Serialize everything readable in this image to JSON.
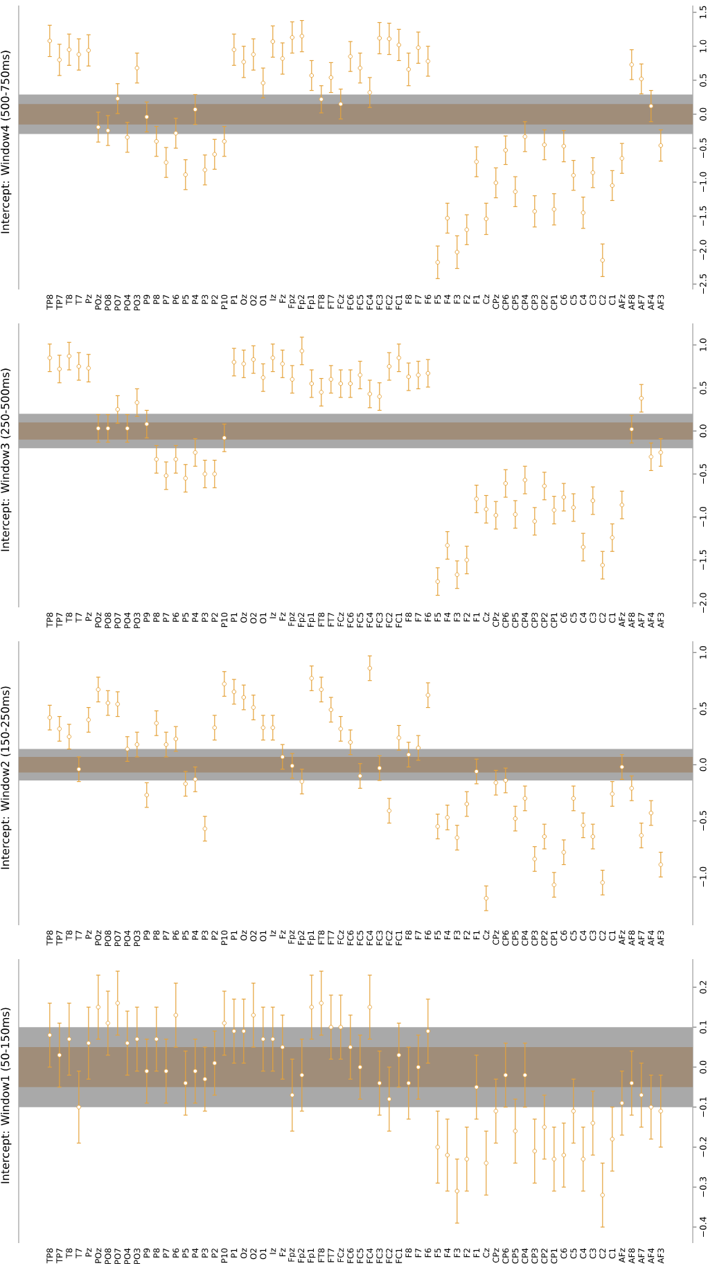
{
  "chart_data": [
    {
      "type": "scatter",
      "title": "Intercept: Window4 (500-750ms)",
      "color": "#e5a33b",
      "marker": "circle",
      "categories": [
        "TP8",
        "TP7",
        "T8",
        "T7",
        "Pz",
        "POz",
        "PO8",
        "PO7",
        "PO4",
        "PO3",
        "P9",
        "P8",
        "P7",
        "P6",
        "P5",
        "P4",
        "P3",
        "P2",
        "P10",
        "P1",
        "Oz",
        "O2",
        "O1",
        "Iz",
        "Fz",
        "Fpz",
        "Fp2",
        "Fp1",
        "FT8",
        "FT7",
        "FCz",
        "FC6",
        "FC5",
        "FC4",
        "FC3",
        "FC2",
        "FC1",
        "F8",
        "F7",
        "F6",
        "F5",
        "F4",
        "F3",
        "F2",
        "F1",
        "Cz",
        "CPz",
        "CP6",
        "CP5",
        "CP4",
        "CP3",
        "CP2",
        "CP1",
        "C6",
        "C5",
        "C4",
        "C3",
        "C2",
        "C1",
        "AFz",
        "AF8",
        "AF7",
        "AF4",
        "AF3"
      ],
      "values": [
        1.08,
        0.8,
        0.95,
        0.88,
        0.94,
        -0.19,
        -0.24,
        0.23,
        -0.34,
        0.68,
        -0.04,
        -0.4,
        -0.71,
        -0.28,
        -0.89,
        0.07,
        -0.82,
        -0.59,
        -0.4,
        0.95,
        0.77,
        0.88,
        0.46,
        1.07,
        0.82,
        1.13,
        1.15,
        0.57,
        0.22,
        0.54,
        0.15,
        0.85,
        0.68,
        0.32,
        1.12,
        1.11,
        1.02,
        0.66,
        0.98,
        0.78,
        -2.18,
        -1.53,
        -2.03,
        -1.7,
        -0.7,
        -1.54,
        -1.01,
        -0.53,
        -1.14,
        -0.33,
        -1.43,
        -0.45,
        -1.4,
        -0.47,
        -0.9,
        -1.45,
        -0.86,
        -2.15,
        -1.05,
        -0.65,
        0.73,
        0.52,
        0.12,
        -0.46
      ],
      "errors": [
        0.23,
        0.23,
        0.23,
        0.23,
        0.23,
        0.22,
        0.22,
        0.22,
        0.22,
        0.22,
        0.22,
        0.22,
        0.22,
        0.22,
        0.22,
        0.22,
        0.22,
        0.22,
        0.22,
        0.23,
        0.23,
        0.23,
        0.22,
        0.23,
        0.23,
        0.23,
        0.23,
        0.22,
        0.2,
        0.22,
        0.22,
        0.22,
        0.22,
        0.22,
        0.23,
        0.23,
        0.23,
        0.24,
        0.23,
        0.22,
        0.24,
        0.22,
        0.24,
        0.22,
        0.22,
        0.23,
        0.22,
        0.21,
        0.22,
        0.22,
        0.23,
        0.22,
        0.23,
        0.23,
        0.22,
        0.23,
        0.22,
        0.24,
        0.22,
        0.22,
        0.22,
        0.22,
        0.23,
        0.23
      ],
      "ylim": [
        -2.58,
        1.6
      ],
      "yticks": [
        {
          "value": -2.5,
          "label": "−2.5"
        },
        {
          "value": -2.0,
          "label": "−2.0"
        },
        {
          "value": -1.5,
          "label": "−1.5"
        },
        {
          "value": -1.0,
          "label": "−1.0"
        },
        {
          "value": -0.5,
          "label": "−0.5"
        },
        {
          "value": 0.0,
          "label": "0.0"
        },
        {
          "value": 0.5,
          "label": "0.5"
        },
        {
          "value": 1.0,
          "label": "1.0"
        },
        {
          "value": 1.5,
          "label": "1.5"
        }
      ],
      "bands": [
        {
          "axis": "y",
          "from": -0.29,
          "to": 0.29,
          "color": "#a9a9a9"
        },
        {
          "axis": "y",
          "from": -0.15,
          "to": 0.15,
          "color": "#a08d79"
        }
      ]
    },
    {
      "type": "scatter",
      "title": "Intercept: Window3 (250-500ms)",
      "color": "#e5a33b",
      "marker": "circle",
      "categories": [
        "TP8",
        "TP7",
        "T8",
        "T7",
        "Pz",
        "POz",
        "PO8",
        "PO7",
        "PO4",
        "PO3",
        "P9",
        "P8",
        "P7",
        "P6",
        "P5",
        "P4",
        "P3",
        "P2",
        "P10",
        "P1",
        "Oz",
        "O2",
        "O1",
        "Iz",
        "Fz",
        "Fpz",
        "Fp2",
        "Fp1",
        "FT8",
        "FT7",
        "FCz",
        "FC6",
        "FC5",
        "FC4",
        "FC3",
        "FC2",
        "FC1",
        "F8",
        "F7",
        "F6",
        "F5",
        "F4",
        "F3",
        "F2",
        "F1",
        "Cz",
        "CPz",
        "CP6",
        "CP5",
        "CP4",
        "CP3",
        "CP2",
        "CP1",
        "C6",
        "C5",
        "C4",
        "C3",
        "C2",
        "C1",
        "AFz",
        "AF8",
        "AF7",
        "AF4",
        "AF3"
      ],
      "values": [
        0.85,
        0.72,
        0.87,
        0.75,
        0.73,
        0.03,
        0.03,
        0.25,
        0.03,
        0.33,
        0.08,
        -0.33,
        -0.52,
        -0.33,
        -0.55,
        -0.25,
        -0.5,
        -0.5,
        -0.08,
        0.8,
        0.78,
        0.83,
        0.62,
        0.85,
        0.78,
        0.6,
        0.93,
        0.55,
        0.45,
        0.6,
        0.55,
        0.55,
        0.65,
        0.43,
        0.4,
        0.75,
        0.85,
        0.63,
        0.65,
        0.67,
        -1.75,
        -1.33,
        -1.67,
        -1.5,
        -0.79,
        -0.91,
        -0.98,
        -0.61,
        -0.97,
        -0.57,
        -1.05,
        -0.64,
        -0.92,
        -0.77,
        -0.89,
        -1.35,
        -0.81,
        -1.56,
        -1.24,
        -0.86,
        0.02,
        0.38,
        -0.3,
        -0.25
      ],
      "errors": [
        0.16,
        0.16,
        0.16,
        0.16,
        0.16,
        0.16,
        0.16,
        0.16,
        0.16,
        0.16,
        0.16,
        0.16,
        0.16,
        0.16,
        0.16,
        0.16,
        0.16,
        0.16,
        0.16,
        0.16,
        0.16,
        0.16,
        0.16,
        0.16,
        0.16,
        0.16,
        0.16,
        0.16,
        0.16,
        0.16,
        0.16,
        0.16,
        0.16,
        0.16,
        0.16,
        0.16,
        0.16,
        0.16,
        0.16,
        0.16,
        0.16,
        0.16,
        0.16,
        0.16,
        0.16,
        0.16,
        0.16,
        0.16,
        0.16,
        0.16,
        0.16,
        0.16,
        0.16,
        0.16,
        0.16,
        0.16,
        0.16,
        0.16,
        0.16,
        0.16,
        0.16,
        0.16,
        0.16,
        0.16
      ],
      "ylim": [
        -2.05,
        1.25
      ],
      "yticks": [
        {
          "value": -2.0,
          "label": "−2.0"
        },
        {
          "value": -1.5,
          "label": "−1.5"
        },
        {
          "value": -1.0,
          "label": "−1.0"
        },
        {
          "value": -0.5,
          "label": "−0.5"
        },
        {
          "value": 0.0,
          "label": "0.0"
        },
        {
          "value": 0.5,
          "label": "0.5"
        },
        {
          "value": 1.0,
          "label": "1.0"
        }
      ],
      "bands": [
        {
          "axis": "y",
          "from": -0.2,
          "to": 0.2,
          "color": "#a9a9a9"
        },
        {
          "axis": "y",
          "from": -0.1,
          "to": 0.1,
          "color": "#a08d79"
        }
      ]
    },
    {
      "type": "scatter",
      "title": "Intercept: Window2 (150-250ms)",
      "color": "#e5a33b",
      "marker": "circle",
      "categories": [
        "TP8",
        "TP7",
        "T8",
        "T7",
        "Pz",
        "POz",
        "PO8",
        "PO7",
        "PO4",
        "PO3",
        "P9",
        "P8",
        "P7",
        "P6",
        "P5",
        "P4",
        "P3",
        "P2",
        "P10",
        "P1",
        "Oz",
        "O2",
        "O1",
        "Iz",
        "Fz",
        "Fpz",
        "Fp2",
        "Fp1",
        "FT8",
        "FT7",
        "FCz",
        "FC6",
        "FC5",
        "FC4",
        "FC3",
        "FC2",
        "FC1",
        "F8",
        "F7",
        "F6",
        "F5",
        "F4",
        "F3",
        "F2",
        "F1",
        "Cz",
        "CPz",
        "CP6",
        "CP5",
        "CP4",
        "CP3",
        "CP2",
        "CP1",
        "C6",
        "C5",
        "C4",
        "C3",
        "C2",
        "C1",
        "AFz",
        "AF8",
        "AF7",
        "AF4",
        "AF3"
      ],
      "values": [
        0.42,
        0.32,
        0.25,
        -0.04,
        0.4,
        0.67,
        0.55,
        0.54,
        0.14,
        0.18,
        -0.27,
        0.37,
        0.18,
        0.23,
        -0.17,
        -0.13,
        -0.57,
        0.33,
        0.72,
        0.65,
        0.6,
        0.51,
        0.33,
        0.33,
        0.07,
        -0.01,
        -0.15,
        0.77,
        0.67,
        0.49,
        0.32,
        0.2,
        -0.1,
        0.86,
        -0.03,
        -0.41,
        0.24,
        0.09,
        0.15,
        0.62,
        -0.55,
        -0.47,
        -0.65,
        -0.35,
        -0.06,
        -1.19,
        -0.16,
        -0.14,
        -0.48,
        -0.3,
        -0.84,
        -0.64,
        -1.07,
        -0.78,
        -0.3,
        -0.54,
        -0.64,
        -1.05,
        -0.26,
        -0.02,
        -0.21,
        -0.63,
        -0.43,
        -0.89
      ],
      "errors": [
        0.11,
        0.11,
        0.11,
        0.11,
        0.11,
        0.11,
        0.11,
        0.11,
        0.11,
        0.11,
        0.11,
        0.11,
        0.11,
        0.11,
        0.11,
        0.11,
        0.11,
        0.11,
        0.11,
        0.11,
        0.11,
        0.11,
        0.11,
        0.11,
        0.11,
        0.11,
        0.11,
        0.11,
        0.11,
        0.11,
        0.11,
        0.11,
        0.11,
        0.11,
        0.11,
        0.11,
        0.11,
        0.11,
        0.11,
        0.11,
        0.11,
        0.11,
        0.11,
        0.11,
        0.11,
        0.11,
        0.11,
        0.11,
        0.11,
        0.11,
        0.11,
        0.11,
        0.11,
        0.11,
        0.11,
        0.11,
        0.11,
        0.11,
        0.11,
        0.11,
        0.11,
        0.11,
        0.11,
        0.11
      ],
      "ylim": [
        -1.43,
        1.1
      ],
      "yticks": [
        {
          "value": -1.0,
          "label": "−1.0"
        },
        {
          "value": -0.5,
          "label": "−0.5"
        },
        {
          "value": 0.0,
          "label": "0.0"
        },
        {
          "value": 0.5,
          "label": "0.5"
        },
        {
          "value": 1.0,
          "label": "1.0"
        }
      ],
      "bands": [
        {
          "axis": "y",
          "from": -0.14,
          "to": 0.14,
          "color": "#a9a9a9"
        },
        {
          "axis": "y",
          "from": -0.07,
          "to": 0.07,
          "color": "#a08d79"
        }
      ]
    },
    {
      "type": "scatter",
      "title": "Intercept: Window1 (50-150ms)",
      "color": "#e5a33b",
      "marker": "circle",
      "categories": [
        "TP8",
        "TP7",
        "T8",
        "T7",
        "Pz",
        "POz",
        "PO8",
        "PO7",
        "PO4",
        "PO3",
        "P9",
        "P8",
        "P7",
        "P6",
        "P5",
        "P4",
        "P3",
        "P2",
        "P10",
        "P1",
        "Oz",
        "O2",
        "O1",
        "Iz",
        "Fz",
        "Fpz",
        "Fp2",
        "Fp1",
        "FT8",
        "FT7",
        "FCz",
        "FC6",
        "FC5",
        "FC4",
        "FC3",
        "FC2",
        "FC1",
        "F8",
        "F7",
        "F6",
        "F5",
        "F4",
        "F3",
        "F2",
        "F1",
        "Cz",
        "CPz",
        "CP6",
        "CP5",
        "CP4",
        "CP3",
        "CP2",
        "CP1",
        "C6",
        "C5",
        "C4",
        "C3",
        "C2",
        "C1",
        "AFz",
        "AF8",
        "AF7",
        "AF4",
        "AF3"
      ],
      "values": [
        0.08,
        0.03,
        0.07,
        -0.1,
        0.06,
        0.15,
        0.11,
        0.16,
        0.06,
        0.07,
        -0.01,
        0.07,
        -0.01,
        0.13,
        -0.04,
        -0.01,
        -0.03,
        0.01,
        0.11,
        0.09,
        0.09,
        0.13,
        0.07,
        0.07,
        0.05,
        -0.07,
        -0.02,
        0.15,
        0.16,
        0.1,
        0.1,
        0.05,
        0.0,
        0.15,
        -0.04,
        -0.08,
        0.03,
        -0.04,
        0.0,
        0.09,
        -0.2,
        -0.22,
        -0.31,
        -0.23,
        -0.05,
        -0.24,
        -0.11,
        -0.02,
        -0.16,
        -0.02,
        -0.21,
        -0.15,
        -0.23,
        -0.22,
        -0.11,
        -0.23,
        -0.14,
        -0.32,
        -0.18,
        -0.09,
        -0.04,
        -0.07,
        -0.1,
        -0.11
      ],
      "errors": [
        0.08,
        0.08,
        0.09,
        0.09,
        0.09,
        0.08,
        0.08,
        0.08,
        0.08,
        0.08,
        0.08,
        0.08,
        0.08,
        0.08,
        0.08,
        0.08,
        0.08,
        0.08,
        0.08,
        0.08,
        0.08,
        0.08,
        0.08,
        0.08,
        0.08,
        0.09,
        0.09,
        0.08,
        0.08,
        0.08,
        0.08,
        0.08,
        0.08,
        0.08,
        0.08,
        0.08,
        0.08,
        0.09,
        0.08,
        0.08,
        0.09,
        0.09,
        0.08,
        0.08,
        0.08,
        0.08,
        0.08,
        0.08,
        0.08,
        0.08,
        0.08,
        0.08,
        0.08,
        0.08,
        0.08,
        0.08,
        0.08,
        0.08,
        0.08,
        0.08,
        0.08,
        0.08,
        0.08,
        0.09
      ],
      "ylim": [
        -0.44,
        0.27
      ],
      "yticks": [
        {
          "value": -0.4,
          "label": "−0.4"
        },
        {
          "value": -0.3,
          "label": "−0.3"
        },
        {
          "value": -0.2,
          "label": "−0.2"
        },
        {
          "value": -0.1,
          "label": "−0.1"
        },
        {
          "value": 0.0,
          "label": "0.0"
        },
        {
          "value": 0.1,
          "label": "0.1"
        },
        {
          "value": 0.2,
          "label": "0.2"
        }
      ],
      "bands": [
        {
          "axis": "y",
          "from": -0.1,
          "to": 0.1,
          "color": "#a9a9a9"
        },
        {
          "axis": "y",
          "from": -0.05,
          "to": 0.05,
          "color": "#a08d79"
        }
      ]
    }
  ]
}
